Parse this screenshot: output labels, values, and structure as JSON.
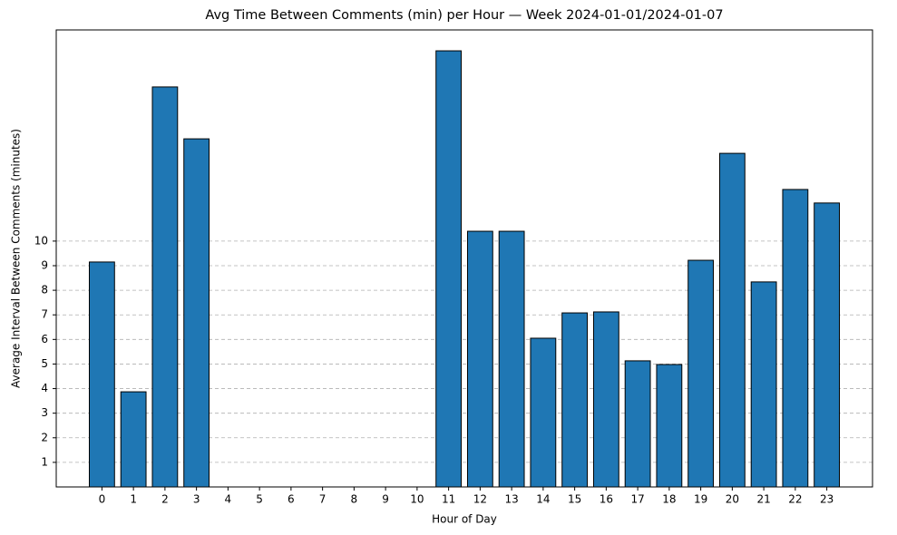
{
  "chart_data": {
    "type": "bar",
    "title": "Avg Time Between Comments (min) per Hour — Week 2024-01-01/2024-01-07",
    "x_label": "Hour of Day",
    "y_label": "Average Interval Between Comments (minutes)",
    "categories": [
      "0",
      "1",
      "2",
      "3",
      "4",
      "5",
      "6",
      "7",
      "8",
      "9",
      "10",
      "11",
      "12",
      "13",
      "14",
      "15",
      "16",
      "17",
      "18",
      "19",
      "20",
      "21",
      "22",
      "23"
    ],
    "values": [
      9.15,
      3.87,
      16.27,
      14.16,
      0,
      0,
      0,
      0,
      0,
      0,
      0,
      17.74,
      10.4,
      10.4,
      6.05,
      7.08,
      7.12,
      5.13,
      4.98,
      9.22,
      13.57,
      8.34,
      12.1,
      11.55
    ],
    "color": "#1f77b4",
    "ylim": [
      0,
      18.59
    ],
    "yticks": [
      1,
      2,
      3,
      4,
      5,
      6,
      7,
      8,
      9,
      10
    ],
    "grid": true
  }
}
